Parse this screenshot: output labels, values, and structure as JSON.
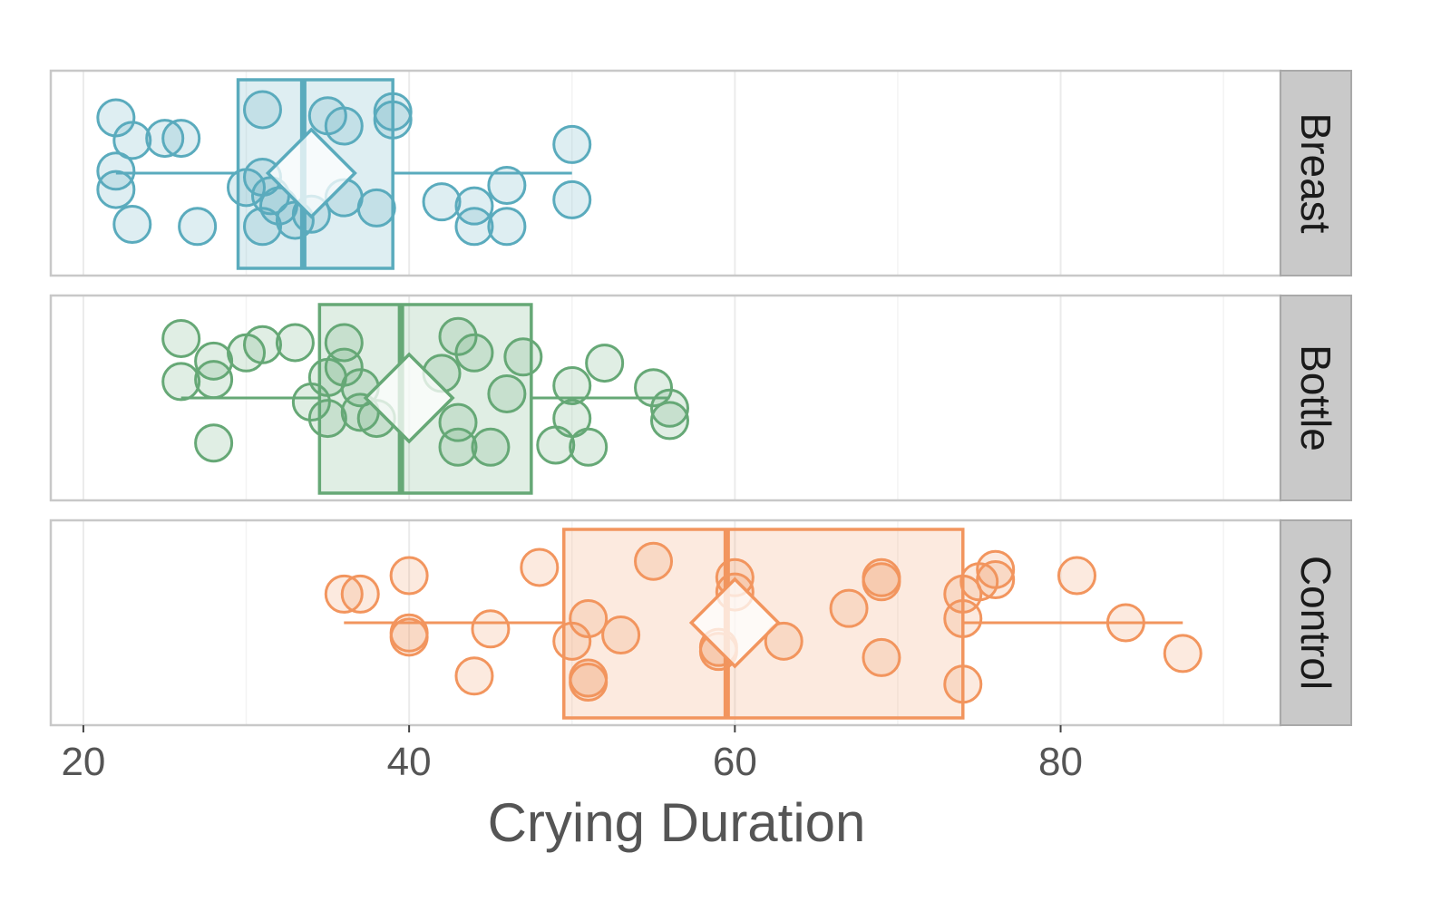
{
  "chart_data": {
    "type": "boxplot",
    "xlabel": "Crying Duration",
    "ylabel": "",
    "xlim": [
      18,
      93.5
    ],
    "xticks": [
      20,
      40,
      60,
      80
    ],
    "grid": true,
    "facets": [
      {
        "name": "Breast",
        "color": "#5aabbd",
        "box": {
          "min": 22,
          "q1": 29.5,
          "median": 33.5,
          "q3": 39,
          "max": 50
        },
        "mean": 34,
        "points": [
          {
            "x": 22,
            "y": 0.77
          },
          {
            "x": 23,
            "y": 0.66
          },
          {
            "x": 25,
            "y": 0.67
          },
          {
            "x": 26,
            "y": 0.67
          },
          {
            "x": 22,
            "y": 0.51
          },
          {
            "x": 22,
            "y": 0.42
          },
          {
            "x": 23,
            "y": 0.25
          },
          {
            "x": 27,
            "y": 0.24
          },
          {
            "x": 31,
            "y": 0.81
          },
          {
            "x": 35,
            "y": 0.78
          },
          {
            "x": 36,
            "y": 0.73
          },
          {
            "x": 39,
            "y": 0.8
          },
          {
            "x": 39,
            "y": 0.76
          },
          {
            "x": 30,
            "y": 0.43
          },
          {
            "x": 31,
            "y": 0.48
          },
          {
            "x": 31.5,
            "y": 0.39
          },
          {
            "x": 32,
            "y": 0.34
          },
          {
            "x": 31,
            "y": 0.24
          },
          {
            "x": 33,
            "y": 0.27
          },
          {
            "x": 34,
            "y": 0.3
          },
          {
            "x": 36,
            "y": 0.38
          },
          {
            "x": 38,
            "y": 0.33
          },
          {
            "x": 42,
            "y": 0.36
          },
          {
            "x": 44,
            "y": 0.34
          },
          {
            "x": 44,
            "y": 0.24
          },
          {
            "x": 46,
            "y": 0.44
          },
          {
            "x": 46,
            "y": 0.24
          },
          {
            "x": 50,
            "y": 0.64
          },
          {
            "x": 50,
            "y": 0.37
          }
        ]
      },
      {
        "name": "Bottle",
        "color": "#66a876",
        "box": {
          "min": 26,
          "q1": 34.5,
          "median": 39.5,
          "q3": 47.5,
          "max": 56
        },
        "mean": 40,
        "points": [
          {
            "x": 26,
            "y": 0.79
          },
          {
            "x": 28,
            "y": 0.68
          },
          {
            "x": 30,
            "y": 0.72
          },
          {
            "x": 31,
            "y": 0.76
          },
          {
            "x": 33,
            "y": 0.77
          },
          {
            "x": 36,
            "y": 0.77
          },
          {
            "x": 26,
            "y": 0.58
          },
          {
            "x": 28,
            "y": 0.59
          },
          {
            "x": 28,
            "y": 0.28
          },
          {
            "x": 34,
            "y": 0.48
          },
          {
            "x": 35,
            "y": 0.6
          },
          {
            "x": 36,
            "y": 0.65
          },
          {
            "x": 35,
            "y": 0.4
          },
          {
            "x": 37,
            "y": 0.55
          },
          {
            "x": 37,
            "y": 0.43
          },
          {
            "x": 38,
            "y": 0.4
          },
          {
            "x": 43,
            "y": 0.8
          },
          {
            "x": 44,
            "y": 0.72
          },
          {
            "x": 42,
            "y": 0.62
          },
          {
            "x": 47,
            "y": 0.7
          },
          {
            "x": 46,
            "y": 0.52
          },
          {
            "x": 43,
            "y": 0.38
          },
          {
            "x": 43,
            "y": 0.26
          },
          {
            "x": 45,
            "y": 0.26
          },
          {
            "x": 50,
            "y": 0.56
          },
          {
            "x": 52,
            "y": 0.67
          },
          {
            "x": 50,
            "y": 0.4
          },
          {
            "x": 49,
            "y": 0.27
          },
          {
            "x": 51,
            "y": 0.26
          },
          {
            "x": 55,
            "y": 0.55
          },
          {
            "x": 56,
            "y": 0.45
          },
          {
            "x": 56,
            "y": 0.39
          }
        ]
      },
      {
        "name": "Control",
        "color": "#f2955e",
        "box": {
          "min": 36,
          "q1": 49.5,
          "median": 59.5,
          "q3": 74,
          "max": 87.5
        },
        "mean": 60,
        "points": [
          {
            "x": 36,
            "y": 0.64
          },
          {
            "x": 37,
            "y": 0.64
          },
          {
            "x": 40,
            "y": 0.73
          },
          {
            "x": 40,
            "y": 0.45
          },
          {
            "x": 40,
            "y": 0.43
          },
          {
            "x": 44,
            "y": 0.24
          },
          {
            "x": 45,
            "y": 0.47
          },
          {
            "x": 48,
            "y": 0.77
          },
          {
            "x": 50,
            "y": 0.41
          },
          {
            "x": 51,
            "y": 0.52
          },
          {
            "x": 51,
            "y": 0.23
          },
          {
            "x": 51,
            "y": 0.21
          },
          {
            "x": 53,
            "y": 0.44
          },
          {
            "x": 55,
            "y": 0.8
          },
          {
            "x": 59,
            "y": 0.38
          },
          {
            "x": 59,
            "y": 0.36
          },
          {
            "x": 60,
            "y": 0.72
          },
          {
            "x": 60,
            "y": 0.65
          },
          {
            "x": 63,
            "y": 0.41
          },
          {
            "x": 67,
            "y": 0.57
          },
          {
            "x": 69,
            "y": 0.72
          },
          {
            "x": 69,
            "y": 0.7
          },
          {
            "x": 69,
            "y": 0.33
          },
          {
            "x": 74,
            "y": 0.64
          },
          {
            "x": 75,
            "y": 0.7
          },
          {
            "x": 76,
            "y": 0.76
          },
          {
            "x": 76,
            "y": 0.71
          },
          {
            "x": 74,
            "y": 0.52
          },
          {
            "x": 74,
            "y": 0.2
          },
          {
            "x": 81,
            "y": 0.73
          },
          {
            "x": 84,
            "y": 0.5
          },
          {
            "x": 87.5,
            "y": 0.35
          }
        ]
      }
    ]
  }
}
